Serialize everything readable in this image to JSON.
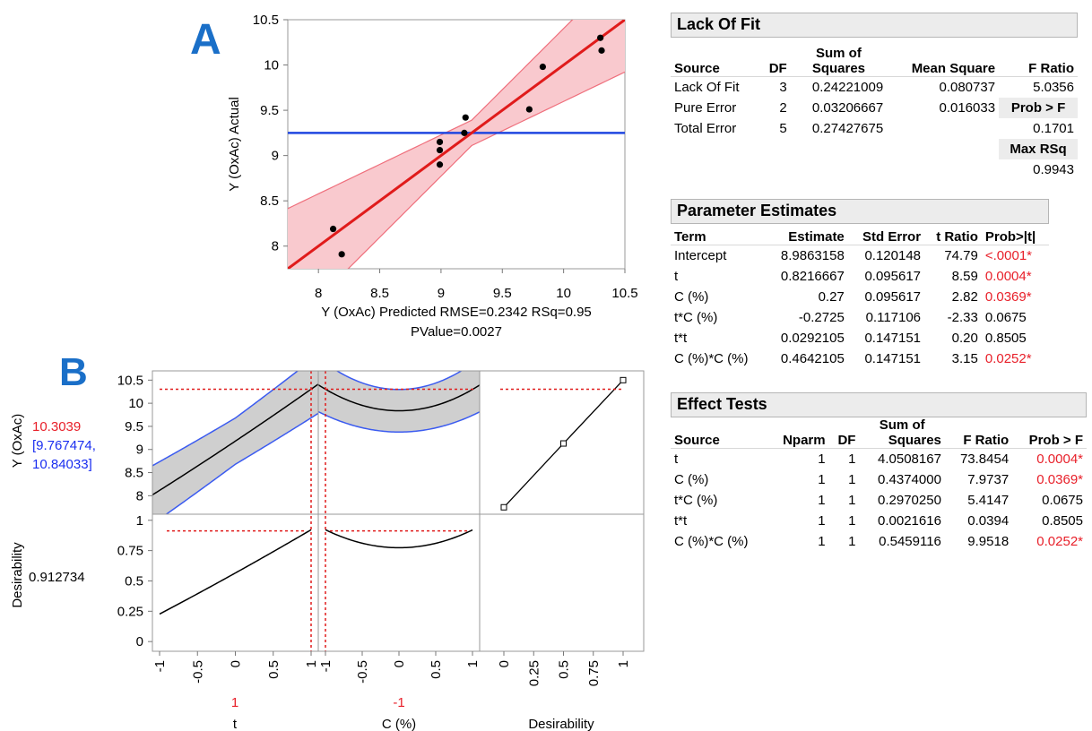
{
  "panel_labels": {
    "a": "A",
    "b": "B"
  },
  "colors": {
    "fit": "#e01b1b",
    "band": "#f9c9ce",
    "mean": "#1f46e0",
    "ci": "#3b5bf0",
    "ref": "#e01b1b",
    "label_blue": "#1a6fc8"
  },
  "chart_data": [
    {
      "type": "scatter",
      "ylabel": "Y (OxAc) Actual",
      "xlabel": "Y (OxAc) Predicted RMSE=0.2342 RSq=0.95",
      "xlabel2": "PValue=0.0027",
      "xlim": [
        7.75,
        10.5
      ],
      "ylim": [
        7.75,
        10.5
      ],
      "xticks": [
        "8",
        "8.5",
        "9",
        "9.5",
        "10",
        "10.5"
      ],
      "yticks": [
        "8",
        "8.5",
        "9",
        "9.5",
        "10",
        "10.5"
      ],
      "points": [
        {
          "x": 8.12,
          "y": 8.19
        },
        {
          "x": 8.19,
          "y": 7.91
        },
        {
          "x": 8.99,
          "y": 9.15
        },
        {
          "x": 8.99,
          "y": 9.06
        },
        {
          "x": 8.99,
          "y": 8.9
        },
        {
          "x": 9.19,
          "y": 9.25
        },
        {
          "x": 9.2,
          "y": 9.42
        },
        {
          "x": 9.72,
          "y": 9.51
        },
        {
          "x": 9.83,
          "y": 9.98
        },
        {
          "x": 10.3,
          "y": 10.3
        },
        {
          "x": 10.31,
          "y": 10.16
        }
      ],
      "mean_line": 9.25
    },
    {
      "type": "line",
      "name": "prediction-profiler",
      "y_response_label": "Y (OxAc)",
      "y_response_value": "10.3039",
      "y_response_ci": [
        "[9.767474,",
        "10.84033]"
      ],
      "y_desirability_label": "Desirability",
      "y_desirability_value": "0.912734",
      "resp_ylim": [
        7.6,
        10.7
      ],
      "resp_yticks": [
        "8",
        "8.5",
        "9",
        "9.5",
        "10",
        "10.5"
      ],
      "des_ylim": [
        -0.08,
        1.05
      ],
      "des_yticks": [
        "0",
        "0.25",
        "0.5",
        "0.75",
        "1"
      ],
      "factors": [
        {
          "name": "t",
          "current": "1",
          "xticks": [
            "-1",
            "-0.5",
            "0",
            "0.5",
            "1"
          ]
        },
        {
          "name": "C (%)",
          "current": "-1",
          "xticks": [
            "-1",
            "-0.5",
            "0",
            "0.5",
            "1"
          ]
        },
        {
          "name": "Desirability",
          "current": "",
          "xticks": [
            "0",
            "0.25",
            "0.5",
            "0.75",
            "1"
          ]
        }
      ]
    }
  ],
  "lack_of_fit": {
    "title": "Lack Of Fit",
    "headers": [
      "Source",
      "DF",
      "Sum of Squares",
      "Mean Square",
      "F Ratio"
    ],
    "hdr_sum_top": "Sum of",
    "hdr_sum_bottom": "Squares",
    "rows": [
      [
        "Lack Of Fit",
        "3",
        "0.24221009",
        "0.080737",
        "5.0356"
      ],
      [
        "Pure Error",
        "2",
        "0.03206667",
        "0.016033",
        ""
      ],
      [
        "Total Error",
        "5",
        "0.27427675",
        "",
        "0.1701"
      ]
    ],
    "prob_label": "Prob > F",
    "maxrsq_label": "Max RSq",
    "maxrsq_value": "0.9943"
  },
  "parameter_estimates": {
    "title": "Parameter Estimates",
    "headers": [
      "Term",
      "Estimate",
      "Std Error",
      "t Ratio",
      "Prob>|t|"
    ],
    "rows": [
      [
        "Intercept",
        "8.9863158",
        "0.120148",
        "74.79",
        "<.0001*"
      ],
      [
        "t",
        "0.8216667",
        "0.095617",
        "8.59",
        "0.0004*"
      ],
      [
        "C (%)",
        "0.27",
        "0.095617",
        "2.82",
        "0.0369*"
      ],
      [
        "t*C (%)",
        "-0.2725",
        "0.117106",
        "-2.33",
        "0.0675"
      ],
      [
        "t*t",
        "0.0292105",
        "0.147151",
        "0.20",
        "0.8505"
      ],
      [
        "C (%)*C (%)",
        "0.4642105",
        "0.147151",
        "3.15",
        "0.0252*"
      ]
    ],
    "significant": [
      true,
      true,
      true,
      false,
      false,
      true
    ]
  },
  "effect_tests": {
    "title": "Effect Tests",
    "hdr_sum_top": "Sum of",
    "headers": [
      "Source",
      "Nparm",
      "DF",
      "Squares",
      "F Ratio",
      "Prob > F"
    ],
    "rows": [
      [
        "t",
        "1",
        "1",
        "4.0508167",
        "73.8454",
        "0.0004*"
      ],
      [
        "C (%)",
        "1",
        "1",
        "0.4374000",
        "7.9737",
        "0.0369*"
      ],
      [
        "t*C (%)",
        "1",
        "1",
        "0.2970250",
        "5.4147",
        "0.0675"
      ],
      [
        "t*t",
        "1",
        "1",
        "0.0021616",
        "0.0394",
        "0.8505"
      ],
      [
        "C (%)*C (%)",
        "1",
        "1",
        "0.5459116",
        "9.9518",
        "0.0252*"
      ]
    ],
    "significant": [
      true,
      true,
      false,
      false,
      true
    ]
  }
}
